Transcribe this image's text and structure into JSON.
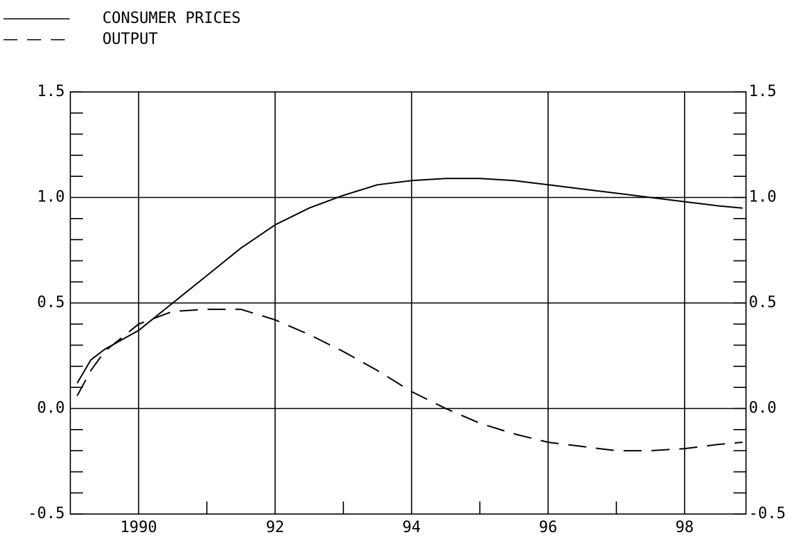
{
  "chart_data": {
    "type": "line",
    "x": [
      1989.1,
      1989.3,
      1989.5,
      1990,
      1990.5,
      1991,
      1991.5,
      1992,
      1992.5,
      1993,
      1993.5,
      1994,
      1994.5,
      1995,
      1995.5,
      1996,
      1996.5,
      1997,
      1997.5,
      1998,
      1998.5,
      1998.85
    ],
    "series": [
      {
        "name": "CONSUMER PRICES",
        "color": "#000000",
        "dash": "solid",
        "values": [
          0.12,
          0.23,
          0.28,
          0.37,
          0.5,
          0.63,
          0.76,
          0.87,
          0.95,
          1.01,
          1.06,
          1.08,
          1.09,
          1.09,
          1.08,
          1.06,
          1.04,
          1.02,
          1.0,
          0.98,
          0.96,
          0.95
        ]
      },
      {
        "name": "OUTPUT",
        "color": "#000000",
        "dash": "dashed",
        "values": [
          0.06,
          0.18,
          0.27,
          0.4,
          0.46,
          0.47,
          0.47,
          0.42,
          0.35,
          0.27,
          0.18,
          0.08,
          0.0,
          -0.07,
          -0.12,
          -0.16,
          -0.18,
          -0.2,
          -0.2,
          -0.19,
          -0.17,
          -0.16
        ]
      }
    ],
    "xlim": [
      1989,
      1998.9
    ],
    "xticks": [
      1990,
      {
        "value": 1992,
        "label": "92"
      },
      {
        "value": 1994,
        "label": "94"
      },
      {
        "value": 1996,
        "label": "96"
      },
      {
        "value": 1998,
        "label": "98"
      }
    ],
    "x_minor_ticks": [
      1991,
      1993,
      1995,
      1997
    ],
    "ylim": [
      -0.5,
      1.5
    ],
    "yticks": [
      -0.5,
      {
        "value": 0,
        "label": "0.0"
      },
      0.5,
      {
        "value": 1,
        "label": "1.0"
      },
      1.5
    ],
    "y2lim": [
      -0.5,
      1.5
    ],
    "y2ticks": [
      -0.5,
      {
        "value": 0,
        "label": "0.0"
      },
      0.5,
      {
        "value": 1,
        "label": "1.0"
      },
      1.5
    ],
    "y_minor_ticks": [
      -0.4,
      -0.3,
      -0.2,
      -0.1,
      0.1,
      0.2,
      0.3,
      0.4,
      0.6,
      0.7,
      0.8,
      0.9,
      1.1,
      1.2,
      1.3,
      1.4
    ],
    "grid": true,
    "legend": "top-left"
  }
}
